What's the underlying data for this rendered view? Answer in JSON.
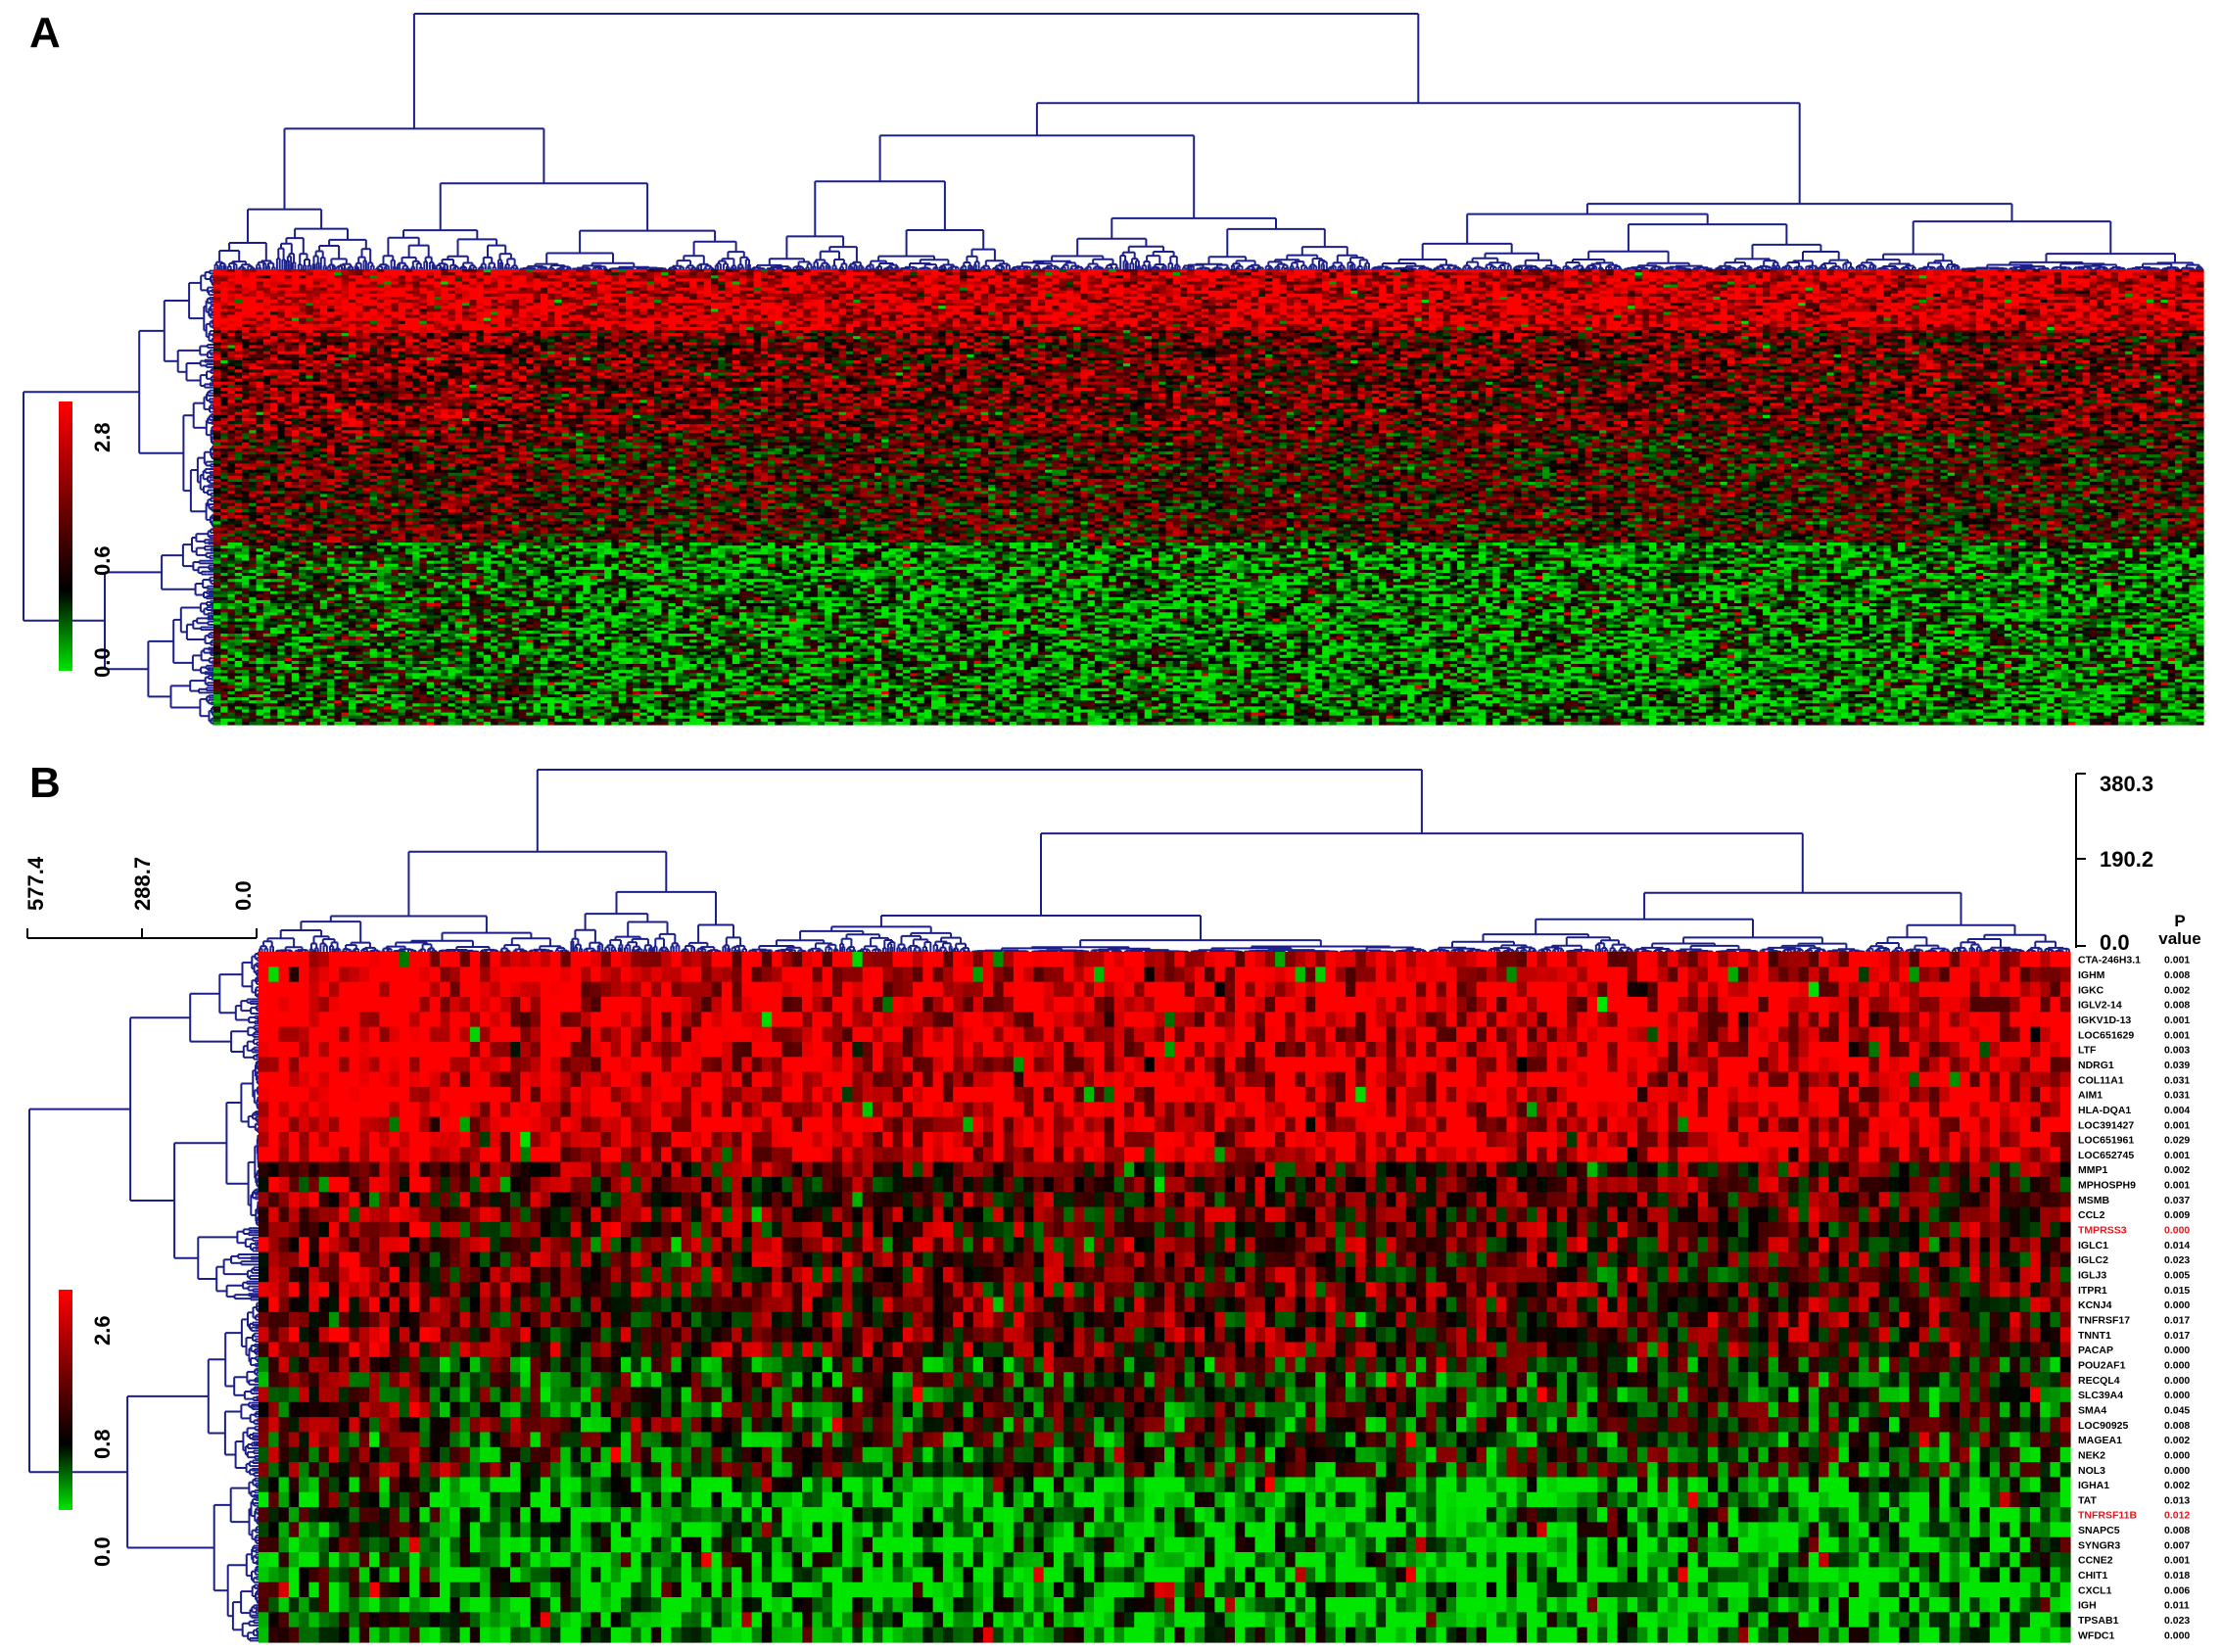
{
  "panels": [
    {
      "label": "A",
      "color_scale": {
        "ticks": [
          "0.0",
          "0.6",
          "2.8"
        ],
        "colors": {
          "low": "#00e600",
          "mid": "#000000",
          "high": "#ff0000"
        }
      }
    },
    {
      "label": "B",
      "color_scale": {
        "ticks": [
          "0.0",
          "0.8",
          "2.6"
        ],
        "colors": {
          "low": "#00e600",
          "mid": "#000000",
          "high": "#ff0000"
        }
      },
      "row_dendrogram_scale": [
        "577.4",
        "288.7",
        "0.0"
      ],
      "col_dendrogram_scale": [
        "380.3",
        "190.2",
        "0.0"
      ],
      "pvalue_header": [
        "P",
        "value"
      ]
    }
  ],
  "dendrogram_color": "#1b1f8a",
  "chart_data": [
    {
      "type": "heatmap",
      "panel": "A",
      "legend": {
        "ticks": [
          0.0,
          0.6,
          2.8
        ],
        "range": [
          0.0,
          2.8
        ]
      },
      "rows": 150,
      "columns": 280,
      "row_labels": [],
      "note_values": "individual cell values are not printed; pattern mirrors the image"
    },
    {
      "type": "heatmap",
      "panel": "B",
      "legend": {
        "ticks": [
          0.0,
          0.8,
          2.6
        ],
        "range": [
          0.0,
          2.6
        ]
      },
      "row_dendrogram_ticks": [
        577.4,
        288.7,
        0.0
      ],
      "col_dendrogram_ticks": [
        380.3,
        190.2,
        0.0
      ],
      "genes": [
        {
          "name": "CTA-246H3.1",
          "p": "0.001"
        },
        {
          "name": "IGHM",
          "p": "0.008"
        },
        {
          "name": "IGKC",
          "p": "0.002"
        },
        {
          "name": "IGLV2-14",
          "p": "0.008"
        },
        {
          "name": "IGKV1D-13",
          "p": "0.001"
        },
        {
          "name": "LOC651629",
          "p": "0.001"
        },
        {
          "name": "LTF",
          "p": "0.003"
        },
        {
          "name": "NDRG1",
          "p": "0.039"
        },
        {
          "name": "COL11A1",
          "p": "0.031"
        },
        {
          "name": "AIM1",
          "p": "0.031"
        },
        {
          "name": "HLA-DQA1",
          "p": "0.004"
        },
        {
          "name": "LOC391427",
          "p": "0.001"
        },
        {
          "name": "LOC651961",
          "p": "0.029"
        },
        {
          "name": "LOC652745",
          "p": "0.001"
        },
        {
          "name": "MMP1",
          "p": "0.002"
        },
        {
          "name": "MPHOSPH9",
          "p": "0.001"
        },
        {
          "name": "MSMB",
          "p": "0.037"
        },
        {
          "name": "CCL2",
          "p": "0.009"
        },
        {
          "name": "TMPRSS3",
          "p": "0.000",
          "highlight": true
        },
        {
          "name": "IGLC1",
          "p": "0.014"
        },
        {
          "name": "IGLC2",
          "p": "0.023"
        },
        {
          "name": "IGLJ3",
          "p": "0.005"
        },
        {
          "name": "ITPR1",
          "p": "0.015"
        },
        {
          "name": "KCNJ4",
          "p": "0.000"
        },
        {
          "name": "TNFRSF17",
          "p": "0.017"
        },
        {
          "name": "TNNT1",
          "p": "0.017"
        },
        {
          "name": "PACAP",
          "p": "0.000"
        },
        {
          "name": "POU2AF1",
          "p": "0.000"
        },
        {
          "name": "RECQL4",
          "p": "0.000"
        },
        {
          "name": "SLC39A4",
          "p": "0.000"
        },
        {
          "name": "SMA4",
          "p": "0.045"
        },
        {
          "name": "LOC90925",
          "p": "0.008"
        },
        {
          "name": "MAGEA1",
          "p": "0.002"
        },
        {
          "name": "NEK2",
          "p": "0.000"
        },
        {
          "name": "NOL3",
          "p": "0.000"
        },
        {
          "name": "IGHA1",
          "p": "0.002"
        },
        {
          "name": "TAT",
          "p": "0.013"
        },
        {
          "name": "TNFRSF11B",
          "p": "0.012",
          "highlight": true
        },
        {
          "name": "SNAPC5",
          "p": "0.008"
        },
        {
          "name": "SYNGR3",
          "p": "0.007"
        },
        {
          "name": "CCNE2",
          "p": "0.001"
        },
        {
          "name": "CHIT1",
          "p": "0.018"
        },
        {
          "name": "CXCL1",
          "p": "0.006"
        },
        {
          "name": "IGH",
          "p": "0.011"
        },
        {
          "name": "TPSAB1",
          "p": "0.023"
        },
        {
          "name": "WFDC1",
          "p": "0.000"
        }
      ],
      "columns": 180
    }
  ]
}
